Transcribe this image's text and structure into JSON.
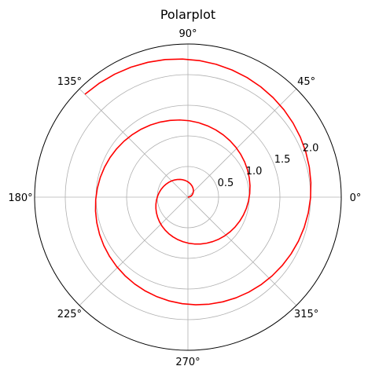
{
  "chart_data": {
    "type": "polar-line",
    "title": "Polarplot",
    "angle_unit": "degrees",
    "theta_tick_labels": [
      "0°",
      "45°",
      "90°",
      "135°",
      "180°",
      "225°",
      "270°",
      "315°"
    ],
    "theta_ticks": [
      0,
      45,
      90,
      135,
      180,
      225,
      270,
      315
    ],
    "r_tick_labels": [
      "0.5",
      "1.0",
      "1.5",
      "2.0"
    ],
    "r_ticks": [
      0.5,
      1.0,
      1.5,
      2.0
    ],
    "r_label_angle_deg": 22.5,
    "rlim": [
      0,
      2.5
    ],
    "grid": true,
    "series": [
      {
        "color": "#ff0000",
        "r_of_theta": "r = theta / (2*pi)",
        "theta_range_deg": [
          0,
          855
        ],
        "points_theta_deg": [
          0,
          45,
          90,
          135,
          180,
          225,
          270,
          315,
          360,
          405,
          450,
          495,
          540,
          585,
          630,
          675,
          720,
          765,
          810,
          855
        ],
        "points_r": [
          0.0,
          0.125,
          0.25,
          0.375,
          0.5,
          0.625,
          0.75,
          0.875,
          1.0,
          1.125,
          1.25,
          1.375,
          1.5,
          1.625,
          1.75,
          1.875,
          2.0,
          2.125,
          2.25,
          2.375
        ]
      }
    ]
  }
}
